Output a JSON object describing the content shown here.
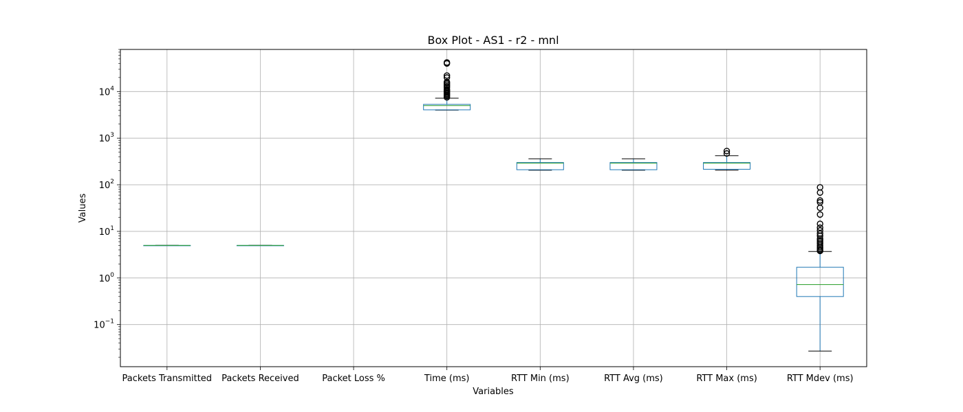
{
  "chart_data": {
    "type": "box",
    "title": "Box Plot - AS1 - r2 - mnl",
    "xlabel": "Variables",
    "ylabel": "Values",
    "yscale": "log",
    "ylim": [
      0.0125,
      80000
    ],
    "y_ticks": [
      {
        "base": "10",
        "exp": "−1",
        "value": 0.1
      },
      {
        "base": "10",
        "exp": "0",
        "value": 1
      },
      {
        "base": "10",
        "exp": "1",
        "value": 10
      },
      {
        "base": "10",
        "exp": "2",
        "value": 100
      },
      {
        "base": "10",
        "exp": "3",
        "value": 1000
      },
      {
        "base": "10",
        "exp": "4",
        "value": 10000
      }
    ],
    "grid": true,
    "colors": {
      "box": "#1f77b4",
      "median": "#2ca02c",
      "whisker": "#000000",
      "grid": "#b0b0b0"
    },
    "categories": [
      "Packets Transmitted",
      "Packets Received",
      "Packet Loss %",
      "Time (ms)",
      "RTT Min (ms)",
      "RTT Avg (ms)",
      "RTT Max (ms)",
      "RTT Mdev (ms)"
    ],
    "boxes": [
      {
        "whislo": 5,
        "q1": 5,
        "med": 5,
        "q3": 5,
        "whishi": 5,
        "fliers": []
      },
      {
        "whislo": 5,
        "q1": 5,
        "med": 5,
        "q3": 5,
        "whishi": 5,
        "fliers": []
      },
      null,
      {
        "whislo": 4000,
        "q1": 4050,
        "med": 5000,
        "q3": 5300,
        "whishi": 7200,
        "fliers": [
          7500,
          8000,
          8500,
          9000,
          9500,
          10000,
          10500,
          11000,
          12000,
          13000,
          14000,
          15000,
          16000,
          20000,
          22000,
          40000,
          42000
        ]
      },
      {
        "whislo": 205,
        "q1": 210,
        "med": 290,
        "q3": 300,
        "whishi": 360,
        "fliers": []
      },
      {
        "whislo": 205,
        "q1": 210,
        "med": 290,
        "q3": 300,
        "whishi": 360,
        "fliers": []
      },
      {
        "whislo": 205,
        "q1": 215,
        "med": 290,
        "q3": 300,
        "whishi": 420,
        "fliers": [
          470,
          530
        ]
      },
      {
        "whislo": 0.027,
        "q1": 0.4,
        "med": 0.72,
        "q3": 1.7,
        "whishi": 3.7,
        "fliers": [
          3.8,
          4.0,
          4.3,
          4.6,
          5.0,
          5.5,
          6.0,
          6.5,
          7.0,
          8.0,
          9.0,
          10.5,
          12,
          14.5,
          23,
          32,
          42,
          46,
          68,
          88
        ]
      }
    ]
  }
}
